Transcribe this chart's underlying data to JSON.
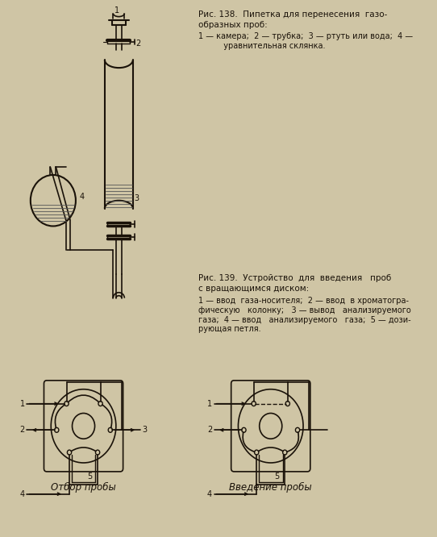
{
  "bg_color": "#cfc5a5",
  "line_color": "#1a1209",
  "title1_line1": "Рис. 138.  Пипетка для перенесения  газо-",
  "title1_line2": "образных проб:",
  "caption1": "1 — камера;  2 — трубка;  3 — ртуть или вода;  4 —\n          уравнительная склянка.",
  "title2_line1": "Рис. 139.  Устройство  для  введения   проб",
  "title2_line2": "с вращающимся диском:",
  "caption2_line1": "1 — ввод  газа-носителя;  2 — ввод  в хроматогра-",
  "caption2_line2": "фическую   колонку;   3 — вывод   анализируемого",
  "caption2_line3": "газа;  4 — ввод   анализируемого   газа;  5 — дози-",
  "caption2_line4": "рующая петля.",
  "label_otbor": "Отбор пробы",
  "label_vvedenie": "Введение пробы"
}
